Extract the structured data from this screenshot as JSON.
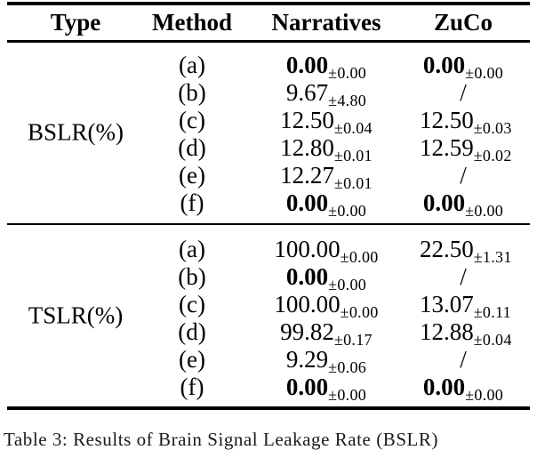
{
  "table": {
    "columns": [
      "Type",
      "Method",
      "Narratives",
      "ZuCo"
    ],
    "sections": [
      {
        "type": "BSLR(%)",
        "rows": [
          {
            "method": "(a)",
            "narratives": {
              "mean": "0.00",
              "std": "±0.00",
              "bold": true
            },
            "zuco": {
              "mean": "0.00",
              "std": "±0.00",
              "bold": true
            }
          },
          {
            "method": "(b)",
            "narratives": {
              "mean": "9.67",
              "std": "±4.80",
              "bold": false
            },
            "zuco": {
              "mean": "/",
              "std": "",
              "bold": false
            }
          },
          {
            "method": "(c)",
            "narratives": {
              "mean": "12.50",
              "std": "±0.04",
              "bold": false
            },
            "zuco": {
              "mean": "12.50",
              "std": "±0.03",
              "bold": false
            }
          },
          {
            "method": "(d)",
            "narratives": {
              "mean": "12.80",
              "std": "±0.01",
              "bold": false
            },
            "zuco": {
              "mean": "12.59",
              "std": "±0.02",
              "bold": false
            }
          },
          {
            "method": "(e)",
            "narratives": {
              "mean": "12.27",
              "std": "±0.01",
              "bold": false
            },
            "zuco": {
              "mean": "/",
              "std": "",
              "bold": false
            }
          },
          {
            "method": "(f)",
            "narratives": {
              "mean": "0.00",
              "std": "±0.00",
              "bold": true
            },
            "zuco": {
              "mean": "0.00",
              "std": "±0.00",
              "bold": true
            }
          }
        ]
      },
      {
        "type": "TSLR(%)",
        "rows": [
          {
            "method": "(a)",
            "narratives": {
              "mean": "100.00",
              "std": "±0.00",
              "bold": false
            },
            "zuco": {
              "mean": "22.50",
              "std": "±1.31",
              "bold": false
            }
          },
          {
            "method": "(b)",
            "narratives": {
              "mean": "0.00",
              "std": "±0.00",
              "bold": true
            },
            "zuco": {
              "mean": "/",
              "std": "",
              "bold": false
            }
          },
          {
            "method": "(c)",
            "narratives": {
              "mean": "100.00",
              "std": "±0.00",
              "bold": false
            },
            "zuco": {
              "mean": "13.07",
              "std": "±0.11",
              "bold": false
            }
          },
          {
            "method": "(d)",
            "narratives": {
              "mean": "99.82",
              "std": "±0.17",
              "bold": false
            },
            "zuco": {
              "mean": "12.88",
              "std": "±0.04",
              "bold": false
            }
          },
          {
            "method": "(e)",
            "narratives": {
              "mean": "9.29",
              "std": "±0.06",
              "bold": false
            },
            "zuco": {
              "mean": "/",
              "std": "",
              "bold": false
            }
          },
          {
            "method": "(f)",
            "narratives": {
              "mean": "0.00",
              "std": "±0.00",
              "bold": true
            },
            "zuco": {
              "mean": "0.00",
              "std": "±0.00",
              "bold": true
            }
          }
        ]
      }
    ]
  },
  "caption": "Table 3: Results of Brain Signal Leakage Rate (BSLR)"
}
